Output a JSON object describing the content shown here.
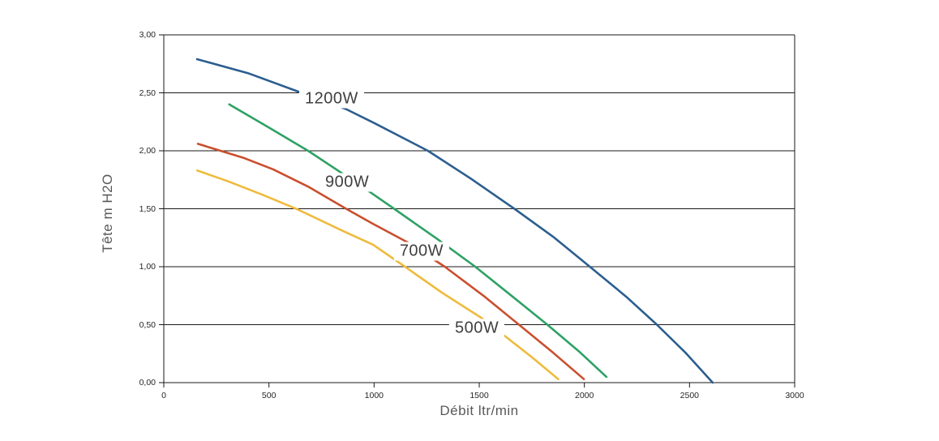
{
  "chart_data": {
    "type": "line",
    "title": "",
    "xlabel": "Débit ltr/min",
    "ylabel": "Tête m H2O",
    "xlim": [
      0,
      3000
    ],
    "ylim": [
      0,
      3
    ],
    "grid": "horizontal-only",
    "legend": "inline-curve-labels",
    "axis_color": "#1a1a1a",
    "tick_text_color": "#262626",
    "axis_title_color": "#595959",
    "curve_label_color": "#3f3f3f",
    "background_color": "#ffffff",
    "x_ticks": [
      {
        "value": 0,
        "label": "0"
      },
      {
        "value": 500,
        "label": "500"
      },
      {
        "value": 1000,
        "label": "1000"
      },
      {
        "value": 1500,
        "label": "1500"
      },
      {
        "value": 2000,
        "label": "2000"
      },
      {
        "value": 2500,
        "label": "2500"
      },
      {
        "value": 3000,
        "label": "3000"
      }
    ],
    "y_ticks": [
      {
        "value": 3.0,
        "label": "3,00"
      },
      {
        "value": 2.5,
        "label": "2,50"
      },
      {
        "value": 2.0,
        "label": "2,00"
      },
      {
        "value": 1.5,
        "label": "1,50"
      },
      {
        "value": 1.0,
        "label": "1,00"
      },
      {
        "value": 0.5,
        "label": "0,50"
      },
      {
        "value": 0.0,
        "label": "0,00"
      }
    ],
    "series": [
      {
        "name": "1200W",
        "color": "#2b5e8f",
        "label_at": {
          "x": 798,
          "y": 2.45
        },
        "points": [
          [
            158,
            2.79
          ],
          [
            400,
            2.67
          ],
          [
            655,
            2.5
          ],
          [
            866,
            2.36
          ],
          [
            1000,
            2.24
          ],
          [
            1256,
            2.0
          ],
          [
            1460,
            1.76
          ],
          [
            1667,
            1.5
          ],
          [
            1850,
            1.26
          ],
          [
            2026,
            1.0
          ],
          [
            2200,
            0.74
          ],
          [
            2345,
            0.5
          ],
          [
            2480,
            0.26
          ],
          [
            2610,
            0.0
          ]
        ]
      },
      {
        "name": "900W",
        "color": "#2ea164",
        "label_at": {
          "x": 872,
          "y": 1.73
        },
        "points": [
          [
            311,
            2.4
          ],
          [
            500,
            2.2
          ],
          [
            686,
            2.0
          ],
          [
            944,
            1.69
          ],
          [
            1095,
            1.5
          ],
          [
            1300,
            1.24
          ],
          [
            1481,
            1.0
          ],
          [
            1660,
            0.74
          ],
          [
            1824,
            0.5
          ],
          [
            1980,
            0.26
          ],
          [
            2105,
            0.05
          ]
        ]
      },
      {
        "name": "700W",
        "color": "#c94f2e",
        "label_at": {
          "x": 1226,
          "y": 1.13
        },
        "points": [
          [
            162,
            2.06
          ],
          [
            378,
            1.94
          ],
          [
            520,
            1.84
          ],
          [
            687,
            1.69
          ],
          [
            867,
            1.5
          ],
          [
            995,
            1.37
          ],
          [
            1160,
            1.21
          ],
          [
            1336,
            1.0
          ],
          [
            1520,
            0.75
          ],
          [
            1689,
            0.5
          ],
          [
            1850,
            0.26
          ],
          [
            1998,
            0.03
          ]
        ]
      },
      {
        "name": "500W",
        "color": "#eebb3d",
        "label_at": {
          "x": 1489,
          "y": 0.47
        },
        "points": [
          [
            159,
            1.83
          ],
          [
            301,
            1.74
          ],
          [
            470,
            1.62
          ],
          [
            629,
            1.5
          ],
          [
            687,
            1.45
          ],
          [
            850,
            1.31
          ],
          [
            995,
            1.19
          ],
          [
            1147,
            1.0
          ],
          [
            1320,
            0.78
          ],
          [
            1509,
            0.56
          ],
          [
            1609,
            0.42
          ],
          [
            1750,
            0.22
          ],
          [
            1876,
            0.03
          ]
        ]
      }
    ]
  }
}
